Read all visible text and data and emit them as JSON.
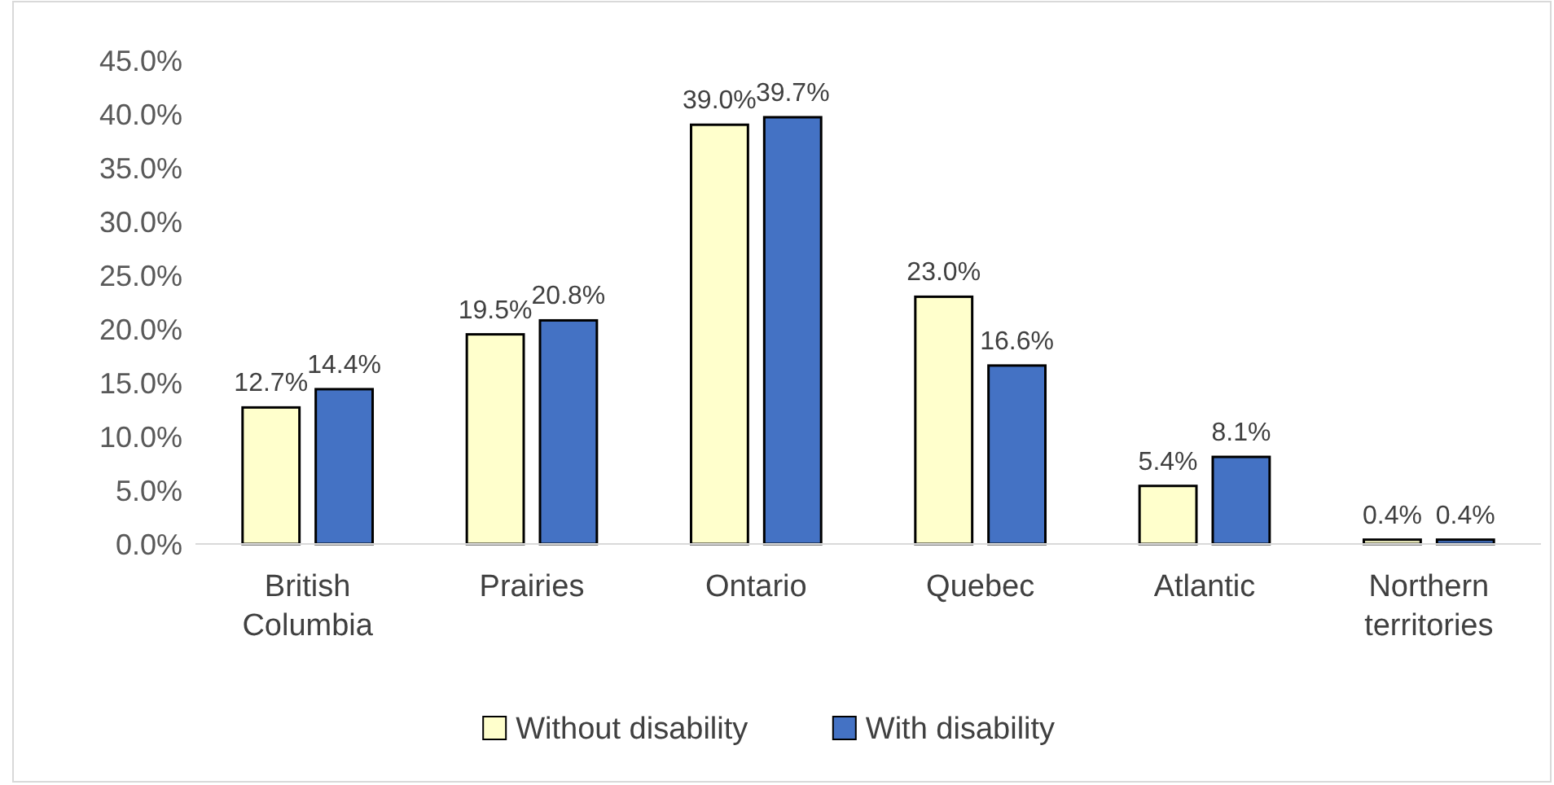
{
  "chart_data": {
    "type": "bar",
    "categories": [
      "British Columbia",
      "Prairies",
      "Ontario",
      "Quebec",
      "Atlantic",
      "Northern territories"
    ],
    "series": [
      {
        "name": "Without disability",
        "color": "#ffffcc",
        "values": [
          12.7,
          19.5,
          39.0,
          23.0,
          5.4,
          0.4
        ],
        "value_labels": [
          "12.7%",
          "19.5%",
          "39.0%",
          "23.0%",
          "5.4%",
          "0.4%"
        ]
      },
      {
        "name": "With disability",
        "color": "#4472c4",
        "values": [
          14.4,
          20.8,
          39.7,
          16.6,
          8.1,
          0.4
        ],
        "value_labels": [
          "14.4%",
          "20.8%",
          "39.7%",
          "16.6%",
          "8.1%",
          "0.4%"
        ]
      }
    ],
    "ylim": [
      0,
      45
    ],
    "yticks": [
      {
        "value": 0,
        "label": "0.0%"
      },
      {
        "value": 5,
        "label": "5.0%"
      },
      {
        "value": 10,
        "label": "10.0%"
      },
      {
        "value": 15,
        "label": "15.0%"
      },
      {
        "value": 20,
        "label": "20.0%"
      },
      {
        "value": 25,
        "label": "25.0%"
      },
      {
        "value": 30,
        "label": "30.0%"
      },
      {
        "value": 35,
        "label": "35.0%"
      },
      {
        "value": 40,
        "label": "40.0%"
      },
      {
        "value": 45,
        "label": "45.0%"
      }
    ],
    "grid": false,
    "legend": "bottom"
  }
}
